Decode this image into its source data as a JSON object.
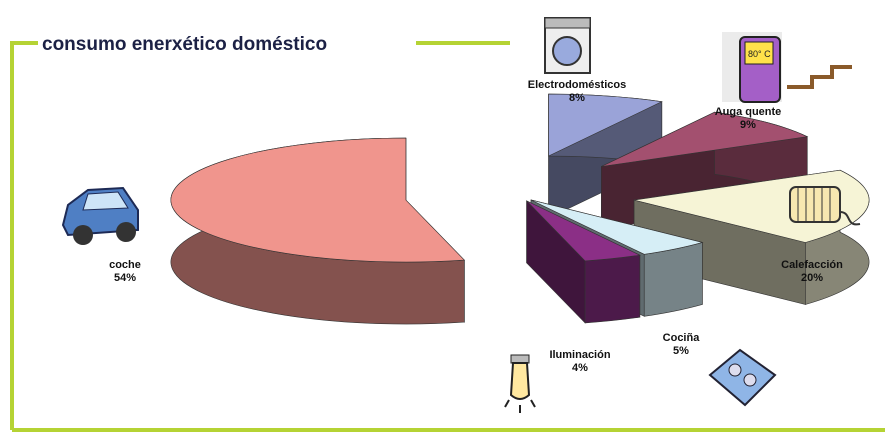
{
  "chart_data": {
    "type": "pie",
    "title": "consumo enerxético doméstico",
    "categories": [
      "Electrodomésticos",
      "Auga quente",
      "Calefacción",
      "Cociña",
      "Iluminación",
      "coche"
    ],
    "values": [
      8,
      9,
      20,
      5,
      4,
      54
    ],
    "value_labels": [
      "8%",
      "9%",
      "20%",
      "5%",
      "4%",
      "54%"
    ],
    "colors": [
      "#9aa3d8",
      "#a3506f",
      "#f6f4d6",
      "#d6eef6",
      "#8b2f86",
      "#f0958d"
    ]
  }
}
